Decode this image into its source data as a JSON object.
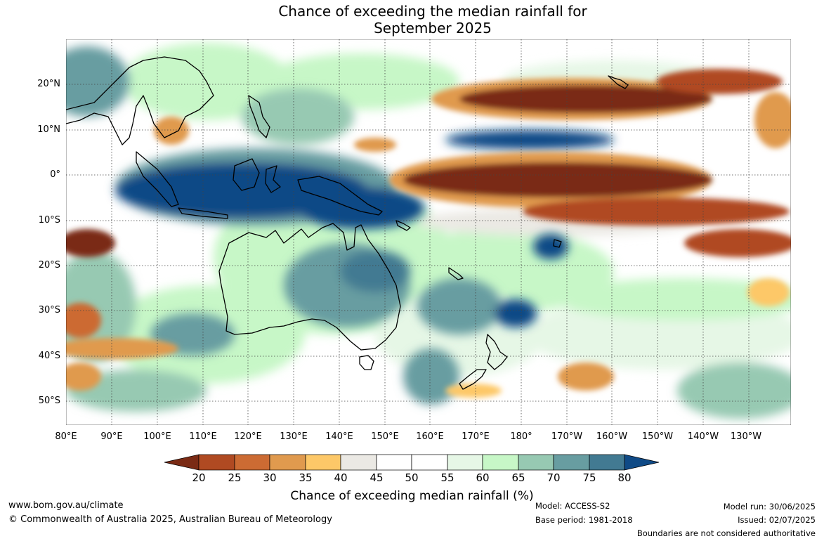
{
  "title": {
    "line1": "Chance of exceeding the median rainfall for",
    "line2": "September 2025"
  },
  "map": {
    "lat_labels": [
      "20°N",
      "10°N",
      "0°",
      "10°S",
      "20°S",
      "30°S",
      "40°S",
      "50°S"
    ],
    "lon_labels": [
      "80°E",
      "90°E",
      "100°E",
      "110°E",
      "120°E",
      "130°E",
      "140°E",
      "150°E",
      "160°E",
      "170°E",
      "180°",
      "170°W",
      "160°W",
      "150°W",
      "140°W",
      "130°W"
    ],
    "colors": {
      "20": "#7a2a14",
      "25": "#b04a22",
      "30": "#cc6b33",
      "35": "#e09a4e",
      "40": "#fdc868",
      "45": "#ebe9e4",
      "50": "#ffffff",
      "55": "#ffffff",
      "60": "#e6f7e6",
      "65": "#c7f7c7",
      "70": "#97c9b2",
      "75": "#689da1",
      "80": "#427a92",
      "above": "#0f4a86"
    }
  },
  "colorbar": {
    "labels": [
      "20",
      "25",
      "30",
      "35",
      "40",
      "45",
      "50",
      "55",
      "60",
      "65",
      "70",
      "75",
      "80"
    ],
    "title": "Chance of exceeding median rainfall (%)"
  },
  "footer": {
    "website": "www.bom.gov.au/climate",
    "copyright": "© Commonwealth of Australia 2025, Australian Bureau of Meteorology",
    "model": "Model: ACCESS-S2",
    "base_period": "Base period: 1981-2018",
    "model_run": "Model run: 30/06/2025",
    "issued": "Issued: 02/07/2025",
    "disclaimer": "Boundaries are not considered authoritative"
  }
}
